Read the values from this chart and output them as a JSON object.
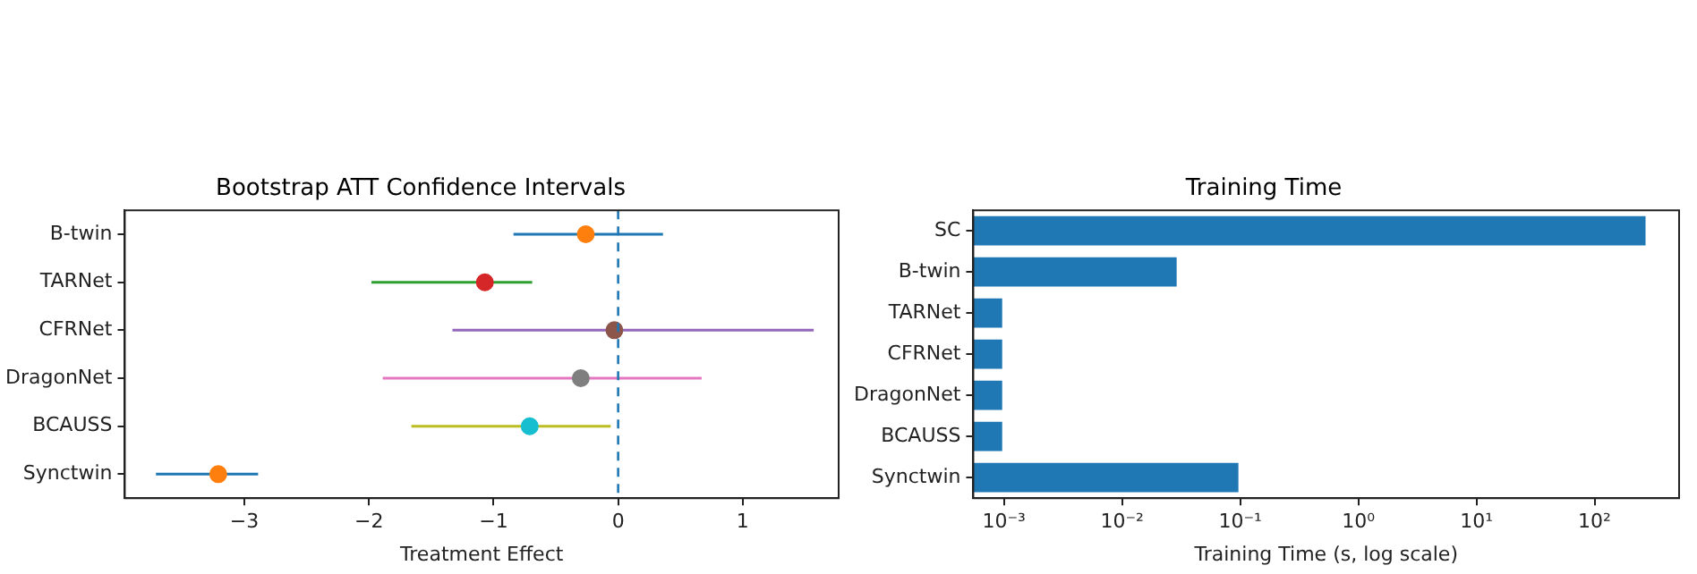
{
  "chart_data": [
    {
      "type": "scatter",
      "title": "Bootstrap ATT Confidence Intervals",
      "xlabel": "Treatment Effect",
      "orientation": "horizontal",
      "marker": "circle",
      "grid": false,
      "legend": false,
      "categories": [
        "B-twin",
        "TARNet",
        "CFRNet",
        "DragonNet",
        "BCAUSS",
        "Synctwin"
      ],
      "xlim": [
        -3.96,
        1.77
      ],
      "xticks": [
        {
          "value": -3,
          "label": "−3"
        },
        {
          "value": -2,
          "label": "−2"
        },
        {
          "value": -1,
          "label": "−1"
        },
        0,
        1
      ],
      "series": [
        {
          "color": "#1f77b4",
          "colors": [
            "#ff7f0e",
            null,
            null,
            null,
            null,
            null
          ],
          "values": [
            -0.26,
            null,
            null,
            null,
            null,
            null
          ],
          "errors": [
            [
              -0.84,
              0.36
            ],
            null,
            null,
            null,
            null,
            null
          ]
        },
        {
          "color": "#2ca02c",
          "colors": [
            null,
            "#d62728",
            null,
            null,
            null,
            null
          ],
          "values": [
            null,
            -1.07,
            null,
            null,
            null,
            null
          ],
          "errors": [
            null,
            [
              -1.98,
              -0.69
            ],
            null,
            null,
            null,
            null
          ]
        },
        {
          "color": "#9467bd",
          "colors": [
            null,
            null,
            "#8c564b",
            null,
            null,
            null
          ],
          "values": [
            null,
            null,
            -0.03,
            null,
            null,
            null
          ],
          "errors": [
            null,
            null,
            [
              -1.33,
              1.57
            ],
            null,
            null,
            null
          ]
        },
        {
          "color": "#e377c2",
          "colors": [
            null,
            null,
            null,
            "#7f7f7f",
            null,
            null
          ],
          "values": [
            null,
            null,
            null,
            -0.3,
            null,
            null
          ],
          "errors": [
            null,
            null,
            null,
            [
              -1.89,
              0.67
            ],
            null,
            null
          ]
        },
        {
          "color": "#bcbd22",
          "colors": [
            null,
            null,
            null,
            null,
            "#17becf",
            null
          ],
          "values": [
            null,
            null,
            null,
            null,
            -0.71,
            null
          ],
          "errors": [
            null,
            null,
            null,
            null,
            [
              -1.66,
              -0.06
            ],
            null
          ]
        },
        {
          "color": "#1f77b4",
          "colors": [
            null,
            null,
            null,
            null,
            null,
            "#ff7f0e"
          ],
          "values": [
            null,
            null,
            null,
            null,
            null,
            -3.21
          ],
          "errors": [
            null,
            null,
            null,
            null,
            null,
            [
              -3.71,
              -2.89
            ]
          ]
        }
      ],
      "ref_lines": [
        {
          "axis": "x",
          "value": 0,
          "color": "#1f77b4",
          "line_style": "dashed"
        }
      ]
    },
    {
      "type": "bar",
      "orientation": "horizontal",
      "title": "Training Time",
      "xlabel": "Training Time (s, log scale)",
      "log": "x",
      "grid": false,
      "legend": false,
      "categories": [
        "SC",
        "B-twin",
        "TARNet",
        "CFRNet",
        "DragonNet",
        "BCAUSS",
        "Synctwin"
      ],
      "values": [
        280,
        0.03,
        0.001,
        0.001,
        0.001,
        0.001,
        0.1
      ],
      "color": "#1f77b4",
      "xlim": [
        0.00055,
        520
      ],
      "xticks": [
        {
          "value": 0.001,
          "label": "10⁻³"
        },
        {
          "value": 0.01,
          "label": "10⁻²"
        },
        {
          "value": 0.1,
          "label": "10⁻¹"
        },
        {
          "value": 1,
          "label": "10⁰"
        },
        {
          "value": 10,
          "label": "10¹"
        },
        {
          "value": 100,
          "label": "10²"
        }
      ]
    }
  ]
}
